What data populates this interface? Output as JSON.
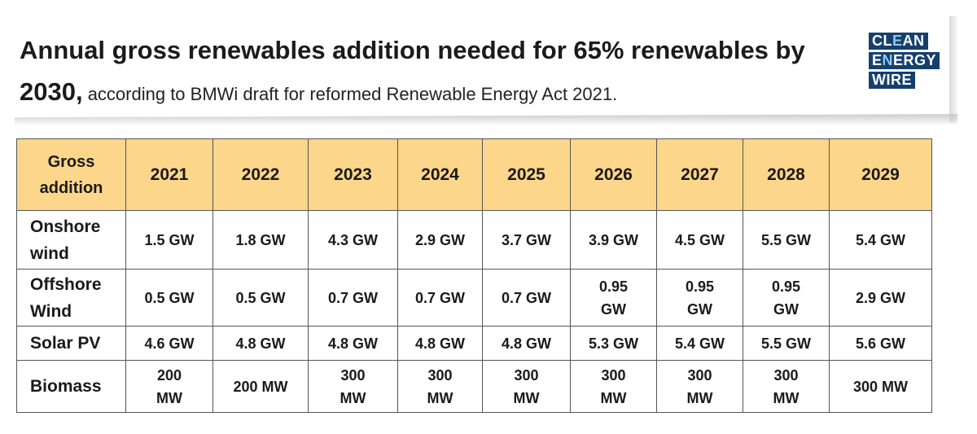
{
  "header": {
    "title_line1": "Annual gross renewables addition needed for 65% renewables by",
    "title_line2_bold": "2030,",
    "title_line2_rest": " according to BMWi draft for reformed Renewable Energy Act 2021."
  },
  "logo": {
    "line1_a": "CL",
    "line1_b": "E",
    "line1_c": "AN",
    "line2_a": "E",
    "line2_b": "N",
    "line2_c": "ERGY",
    "line3": "WIRE",
    "brand_color": "#15406e",
    "accent_color": "#8fc7ec"
  },
  "chart_data": {
    "type": "table",
    "header_fill": "#fcd68a",
    "corner_label_1": "Gross",
    "corner_label_2": "addition",
    "columns": [
      "2021",
      "2022",
      "2023",
      "2024",
      "2025",
      "2026",
      "2027",
      "2028",
      "2029"
    ],
    "rows": [
      {
        "label_1": "Onshore",
        "label_2": "wind",
        "cells": [
          [
            "1.5 GW"
          ],
          [
            "1.8 GW"
          ],
          [
            "4.3 GW"
          ],
          [
            "2.9 GW"
          ],
          [
            "3.7 GW"
          ],
          [
            "3.9 GW"
          ],
          [
            "4.5 GW"
          ],
          [
            "5.5 GW"
          ],
          [
            "5.4 GW"
          ]
        ]
      },
      {
        "label_1": "Offshore",
        "label_2": "Wind",
        "cells": [
          [
            "0.5 GW"
          ],
          [
            "0.5 GW"
          ],
          [
            "0.7 GW"
          ],
          [
            "0.7 GW"
          ],
          [
            "0.7 GW"
          ],
          [
            "0.95",
            "GW"
          ],
          [
            "0.95",
            "GW"
          ],
          [
            "0.95",
            "GW"
          ],
          [
            "2.9 GW"
          ]
        ]
      },
      {
        "label_1": "Solar PV",
        "label_2": "",
        "cells": [
          [
            "4.6 GW"
          ],
          [
            "4.8 GW"
          ],
          [
            "4.8 GW"
          ],
          [
            "4.8 GW"
          ],
          [
            "4.8 GW"
          ],
          [
            "5.3 GW"
          ],
          [
            "5.4 GW"
          ],
          [
            "5.5 GW"
          ],
          [
            "5.6 GW"
          ]
        ]
      },
      {
        "label_1": "Biomass",
        "label_2": "",
        "cells": [
          [
            "200",
            "MW"
          ],
          [
            "200 MW"
          ],
          [
            "300",
            "MW"
          ],
          [
            "300",
            "MW"
          ],
          [
            "300",
            "MW"
          ],
          [
            "300",
            "MW"
          ],
          [
            "300",
            "MW"
          ],
          [
            "300",
            "MW"
          ],
          [
            "300 MW"
          ]
        ]
      }
    ]
  }
}
